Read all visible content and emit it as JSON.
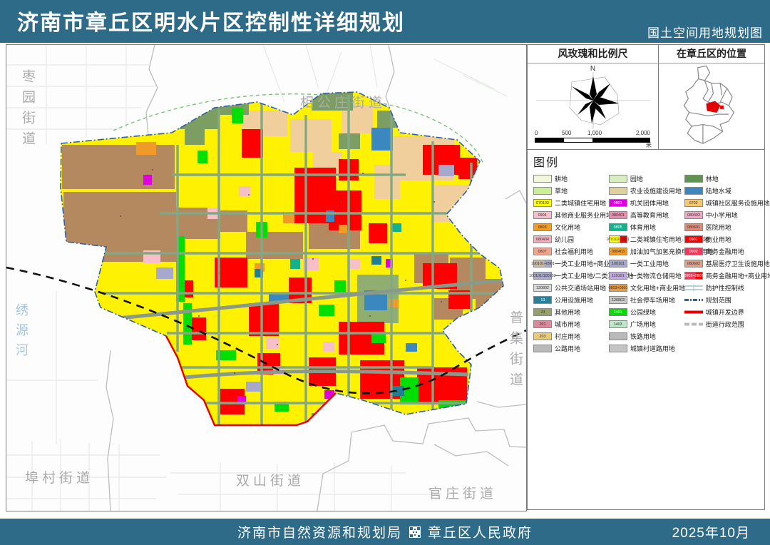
{
  "header": {
    "title": "济南市章丘区明水片区控制性详细规划",
    "subtitle": "国土空间用地规划图"
  },
  "windrose": {
    "title": "风玫瑰和比例尺",
    "north_label": "N",
    "scale_labels": [
      "0",
      "500",
      "1,000",
      "2,000"
    ],
    "scale_unit": "米"
  },
  "location": {
    "title": "在章丘区的位置",
    "highlight_color": "#e60000"
  },
  "map": {
    "labels": {
      "zaoyuan": "枣园街道",
      "xianggongzhuang": "相公庄街道",
      "xiuyuanhe": "绣源河",
      "puji": "普集街道",
      "bucun": "埠村街道",
      "shuangshan": "双山街道",
      "guanzhuang": "官庄街道"
    }
  },
  "legend": {
    "title": "图例",
    "columns": [
      [
        {
          "label": "耕地",
          "color": "#f2f6dc"
        },
        {
          "label": "草地",
          "color": "#cdee96"
        },
        {
          "label": "二类城镇住宅用地",
          "code": "070102",
          "color": "#ffff00"
        },
        {
          "label": "其他商业服务业用地",
          "code": "0904",
          "color": "#f6bfca"
        },
        {
          "label": "文化用地",
          "code": "0803",
          "color": "#f09a28"
        },
        {
          "label": "幼儿园",
          "code": "080404",
          "color": "#f2b0bd"
        },
        {
          "label": "社会福利用地",
          "code": "0807",
          "color": "#f2a48c"
        },
        {
          "label": "一类工业用地+商业用地",
          "code": "100101+0901",
          "colors": [
            "#c9b9a0",
            "#a8a8cc"
          ]
        },
        {
          "label": "一类工业用地/二类工业用地",
          "code": "100101/100102",
          "color": "#a8a8cc"
        },
        {
          "label": "公共交通场站用地",
          "code": "120802",
          "color": "#d9d9d9"
        },
        {
          "label": "公用设施用地",
          "code": "13",
          "color": "#2b7f99"
        },
        {
          "label": "其他用地",
          "code": "23",
          "color": "#95a06b"
        },
        {
          "label": "城市用地",
          "code": "201",
          "color": "#d9899a"
        },
        {
          "label": "村庄用地",
          "code": "203",
          "color": "#ecca72"
        },
        {
          "label": "公路用地",
          "color": "#b9b9b9"
        }
      ],
      [
        {
          "label": "园地",
          "color": "#d8edc0"
        },
        {
          "label": "农业设施建设用地",
          "color": "#ddd29e"
        },
        {
          "label": "机关团体用地",
          "code": "0801",
          "color": "#df00df"
        },
        {
          "label": "高等教育用地",
          "code": "080401",
          "color": "#ef8bb0"
        },
        {
          "label": "体育用地",
          "code": "0805",
          "color": "#12b28c"
        },
        {
          "label": "二类城镇住宅用地-商业用地",
          "code": "070102-0901",
          "colors": [
            "#ffff00",
            "#ff0000"
          ]
        },
        {
          "label": "加油加气加氢充换电设施用地",
          "code": "090403",
          "color": "#f59a23"
        },
        {
          "label": "一类工业用地",
          "code": "100101",
          "color": "#a8a8cc"
        },
        {
          "label": "一类物流仓储用地",
          "code": "110101",
          "color": "#c0aadd"
        },
        {
          "label": "文化用地+商业用地",
          "code": "0803+0901",
          "color": "#e89a40"
        },
        {
          "label": "社会停车场用地",
          "code": "120803",
          "color": "#c9c9c9"
        },
        {
          "label": "公园绿地",
          "code": "1401",
          "color": "#00df00"
        },
        {
          "label": "广场用地",
          "code": "1403",
          "color": "#bfe8c9"
        },
        {
          "label": "铁路用地",
          "color": "#b9b9b9"
        },
        {
          "label": "城镇村道路用地",
          "color": "#c4c4c4"
        }
      ],
      [
        {
          "label": "林地",
          "color": "#5f9352"
        },
        {
          "label": "陆地水域",
          "color": "#3b87c0"
        },
        {
          "label": "城镇社区服务设施用地",
          "code": "0702",
          "color": "#f7c873"
        },
        {
          "label": "中小学用地",
          "code": "080403",
          "color": "#f4a7c3"
        },
        {
          "label": "医院用地",
          "code": "080601",
          "color": "#e08a7a"
        },
        {
          "label": "商业用地",
          "code": "0901",
          "color": "#ff0000"
        },
        {
          "label": "商务金融用地",
          "code": "0902",
          "color": "#ee3a5c"
        },
        {
          "label": "基层医疗卫生设施用地",
          "code": "080602",
          "color": "#dfa08a"
        },
        {
          "label": "商务金融用地+商业用地",
          "code": "0902+0901",
          "colors": [
            "#ee3a5c",
            "#ff0000"
          ]
        },
        {
          "label": "防护性控制线",
          "type": "protect"
        },
        {
          "label": "规划范围",
          "type": "plan",
          "color": "#2f5fa8"
        },
        {
          "label": "城镇开发边界",
          "type": "boundary",
          "color": "#e60000"
        },
        {
          "label": "街道行政范围",
          "type": "admin",
          "color": "#b9b9b9"
        }
      ]
    ]
  },
  "footer": {
    "agency_left": "济南市自然资源和规划局",
    "agency_right": "章丘区人民政府",
    "date": "2025年10月"
  }
}
